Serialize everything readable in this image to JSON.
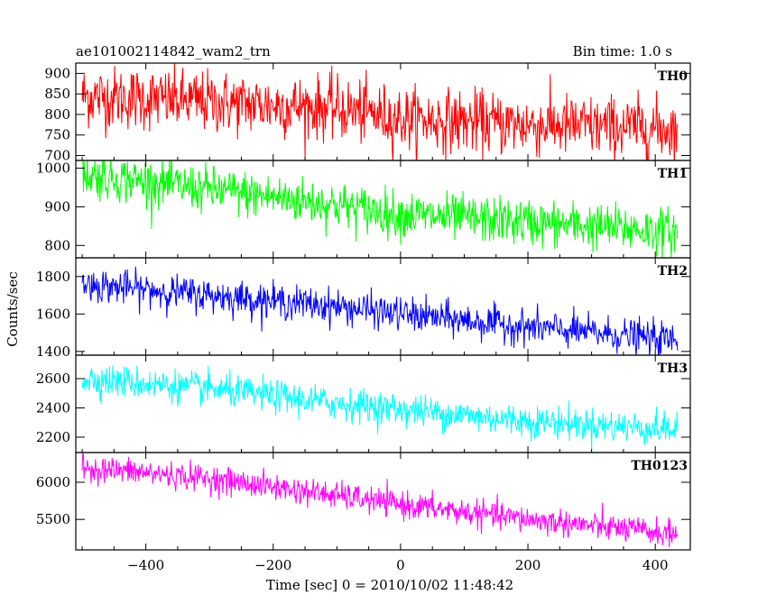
{
  "header": {
    "title": "ae101002114842_wam2_trn",
    "bin_time": "Bin time: 1.0 s"
  },
  "axes": {
    "ylabel": "Counts/sec",
    "xlabel": "Time [sec] 0 = 2010/10/02 11:48:42"
  },
  "chart_data": {
    "type": "line",
    "title": "ae101002114842_wam2_trn",
    "subtitle": "Bin time: 1.0 s",
    "xlabel": "Time [sec] 0 = 2010/10/02 11:48:42",
    "ylabel": "Counts/sec",
    "xlim": [
      -510,
      455
    ],
    "x_ticks": [
      -400,
      -200,
      0,
      200,
      400
    ],
    "x_tick_labels": [
      "−400",
      "−200",
      "0",
      "200",
      "400"
    ],
    "x_start": -500,
    "x_end": 435,
    "bin_time": 1.0,
    "grid": false,
    "series": [
      {
        "name": "TH0",
        "color": "#ff0000",
        "ylim": [
          688,
          925
        ],
        "y_ticks": [
          700,
          750,
          800,
          850,
          900
        ],
        "trend": [
          [
            -500,
            845
          ],
          [
            -300,
            830
          ],
          [
            -100,
            815
          ],
          [
            0,
            790
          ],
          [
            200,
            775
          ],
          [
            435,
            765
          ]
        ],
        "noise": 38
      },
      {
        "name": "TH1",
        "color": "#00ff00",
        "ylim": [
          768,
          1020
        ],
        "y_ticks": [
          800,
          900,
          1000
        ],
        "trend": [
          [
            -500,
            985
          ],
          [
            -300,
            945
          ],
          [
            -100,
            905
          ],
          [
            0,
            880
          ],
          [
            200,
            860
          ],
          [
            435,
            835
          ]
        ],
        "noise": 30
      },
      {
        "name": "TH2",
        "color": "#0000ff",
        "ylim": [
          1380,
          1900
        ],
        "y_ticks": [
          1400,
          1600,
          1800
        ],
        "trend": [
          [
            -500,
            1760
          ],
          [
            -300,
            1700
          ],
          [
            -100,
            1640
          ],
          [
            0,
            1600
          ],
          [
            200,
            1530
          ],
          [
            435,
            1460
          ]
        ],
        "noise": 45
      },
      {
        "name": "TH3",
        "color": "#00ffff",
        "ylim": [
          2095,
          2760
        ],
        "y_ticks": [
          2200,
          2400,
          2600
        ],
        "trend": [
          [
            -500,
            2600
          ],
          [
            -300,
            2530
          ],
          [
            -100,
            2430
          ],
          [
            0,
            2390
          ],
          [
            200,
            2310
          ],
          [
            435,
            2250
          ]
        ],
        "noise": 55
      },
      {
        "name": "TH0123",
        "color": "#ff00ff",
        "ylim": [
          5090,
          6400
        ],
        "y_ticks": [
          5500,
          6000
        ],
        "y_tick_labels": [
          "5500",
          "6000"
        ],
        "trend": [
          [
            -500,
            6200
          ],
          [
            -300,
            6050
          ],
          [
            -100,
            5820
          ],
          [
            0,
            5700
          ],
          [
            200,
            5500
          ],
          [
            435,
            5300
          ]
        ],
        "noise": 90
      }
    ]
  }
}
